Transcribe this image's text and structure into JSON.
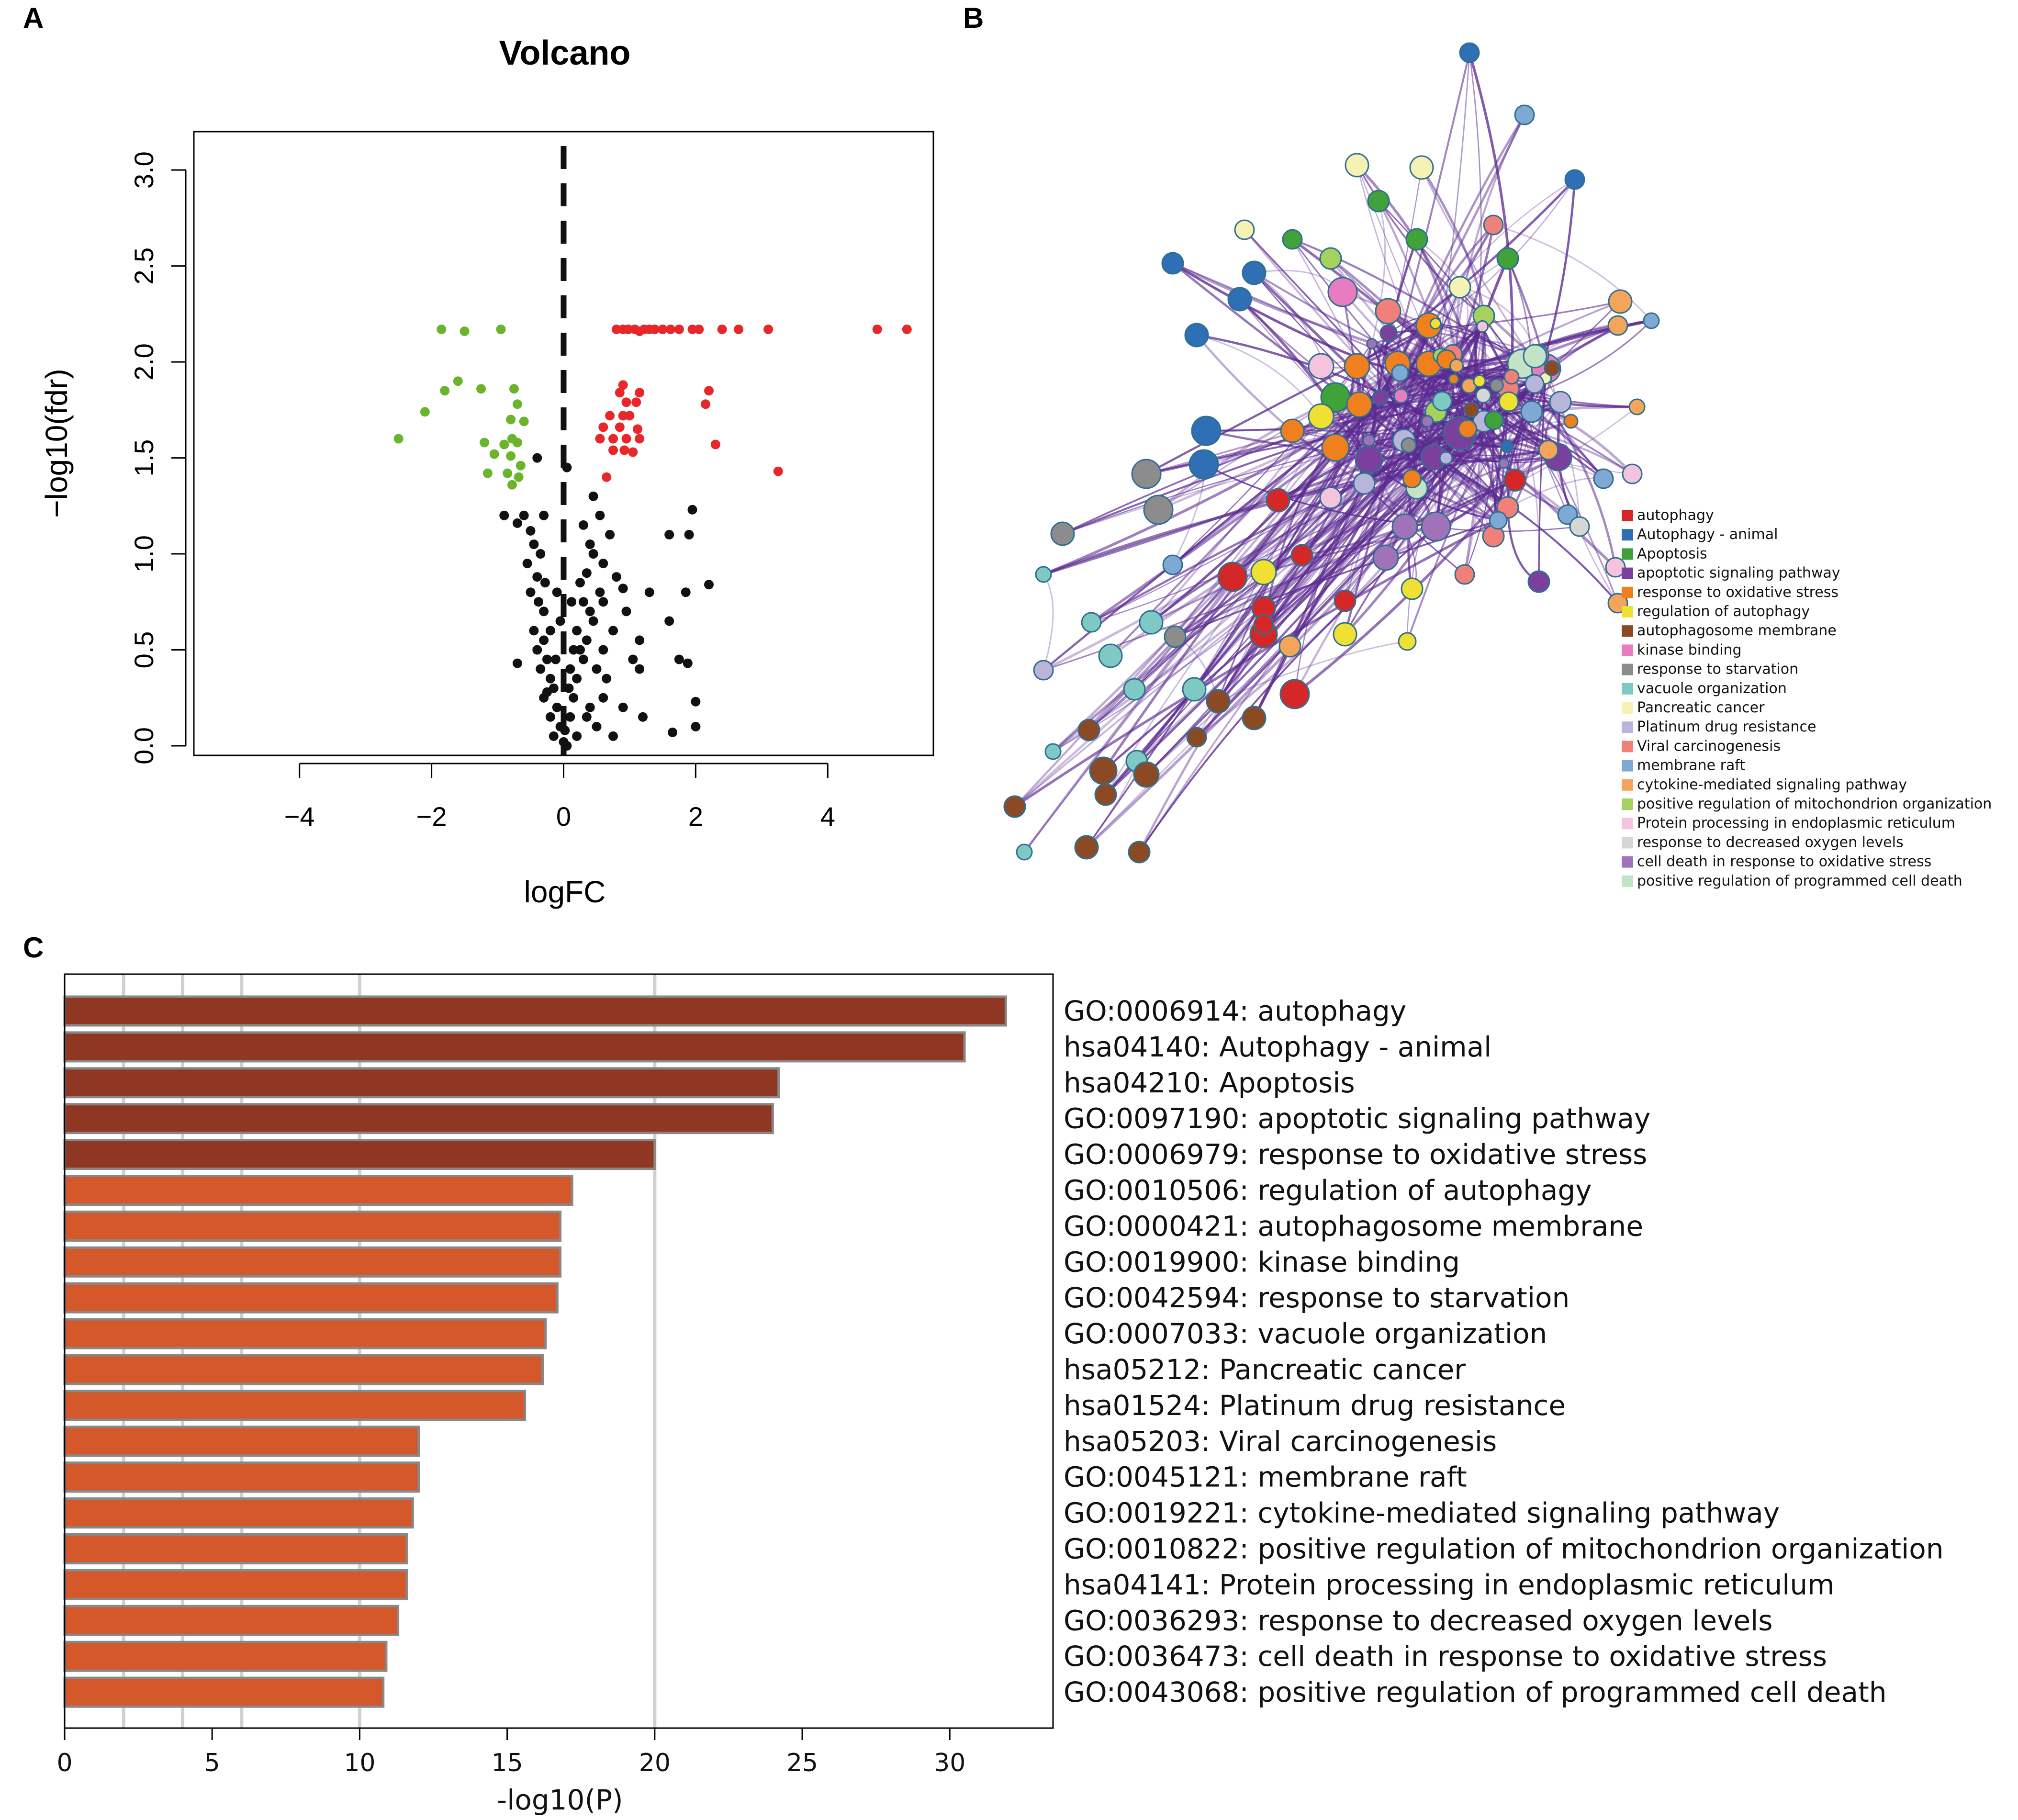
{
  "panel_labels": {
    "a": "A",
    "b": "B",
    "c": "C"
  },
  "chart_data": [
    {
      "type": "scatter",
      "panel": "A",
      "title": "Volcano",
      "xlabel": "logFC",
      "ylabel": "−log10(fdr)",
      "xlim": [
        -5.6,
        5.6
      ],
      "ylim": [
        -0.05,
        3.2
      ],
      "xticks": [
        -4,
        -2,
        0,
        2,
        4
      ],
      "xtick_labels": [
        "−4",
        "−2",
        "0",
        "2",
        "4"
      ],
      "yticks": [
        0.0,
        0.5,
        1.0,
        1.5,
        2.0,
        2.5,
        3.0
      ],
      "ytick_labels": [
        "0.0",
        "0.5",
        "1.0",
        "1.5",
        "2.0",
        "2.5",
        "3.0"
      ],
      "colors": {
        "up": "#e8272a",
        "down": "#6bb52d",
        "ns": "#111111",
        "threshold": "#111111"
      },
      "threshold_line": {
        "x": 0,
        "style": "dashed"
      },
      "series": [
        {
          "name": "down",
          "color": "#6bb52d",
          "points": [
            [
              -1.85,
              2.17
            ],
            [
              -1.5,
              2.16
            ],
            [
              -0.95,
              2.17
            ],
            [
              -1.6,
              1.9
            ],
            [
              -1.8,
              1.85
            ],
            [
              -1.25,
              1.86
            ],
            [
              -0.75,
              1.86
            ],
            [
              -2.1,
              1.74
            ],
            [
              -0.7,
              1.78
            ],
            [
              -0.8,
              1.7
            ],
            [
              -0.6,
              1.69
            ],
            [
              -2.5,
              1.6
            ],
            [
              -1.2,
              1.58
            ],
            [
              -0.9,
              1.57
            ],
            [
              -0.78,
              1.6
            ],
            [
              -0.7,
              1.58
            ],
            [
              -1.05,
              1.52
            ],
            [
              -0.8,
              1.51
            ],
            [
              -0.65,
              1.46
            ],
            [
              -1.15,
              1.42
            ],
            [
              -0.85,
              1.42
            ],
            [
              -0.78,
              1.36
            ],
            [
              -0.68,
              1.4
            ]
          ]
        },
        {
          "name": "up",
          "color": "#e8272a",
          "points": [
            [
              0.8,
              2.17
            ],
            [
              0.9,
              2.17
            ],
            [
              0.98,
              2.17
            ],
            [
              1.08,
              2.17
            ],
            [
              1.15,
              2.16
            ],
            [
              1.22,
              2.17
            ],
            [
              1.3,
              2.17
            ],
            [
              1.38,
              2.17
            ],
            [
              1.5,
              2.17
            ],
            [
              1.62,
              2.17
            ],
            [
              1.75,
              2.17
            ],
            [
              1.95,
              2.17
            ],
            [
              2.05,
              2.17
            ],
            [
              2.4,
              2.17
            ],
            [
              2.65,
              2.17
            ],
            [
              3.1,
              2.17
            ],
            [
              4.75,
              2.17
            ],
            [
              5.2,
              2.17
            ],
            [
              0.9,
              1.88
            ],
            [
              0.85,
              1.84
            ],
            [
              1.15,
              1.84
            ],
            [
              2.2,
              1.85
            ],
            [
              0.95,
              1.79
            ],
            [
              1.1,
              1.79
            ],
            [
              2.15,
              1.78
            ],
            [
              0.7,
              1.72
            ],
            [
              0.9,
              1.72
            ],
            [
              1.0,
              1.72
            ],
            [
              0.6,
              1.66
            ],
            [
              0.85,
              1.66
            ],
            [
              1.12,
              1.65
            ],
            [
              0.55,
              1.6
            ],
            [
              0.75,
              1.6
            ],
            [
              0.95,
              1.6
            ],
            [
              1.15,
              1.6
            ],
            [
              2.3,
              1.57
            ],
            [
              0.75,
              1.54
            ],
            [
              0.92,
              1.54
            ],
            [
              1.05,
              1.53
            ],
            [
              0.65,
              1.4
            ],
            [
              3.25,
              1.43
            ]
          ]
        },
        {
          "name": "ns",
          "color": "#111111",
          "points": [
            [
              -0.4,
              1.5
            ],
            [
              -0.9,
              1.2
            ],
            [
              -0.6,
              1.2
            ],
            [
              -0.7,
              1.16
            ],
            [
              -0.5,
              1.12
            ],
            [
              -0.3,
              1.2
            ],
            [
              -0.45,
              1.05
            ],
            [
              -0.35,
              1.0
            ],
            [
              -0.55,
              0.95
            ],
            [
              -0.4,
              0.88
            ],
            [
              -0.28,
              0.85
            ],
            [
              -0.5,
              0.8
            ],
            [
              -0.38,
              0.75
            ],
            [
              -0.3,
              0.7
            ],
            [
              -0.45,
              0.6
            ],
            [
              -0.3,
              0.55
            ],
            [
              -0.4,
              0.5
            ],
            [
              -0.25,
              0.45
            ],
            [
              -0.7,
              0.43
            ],
            [
              -0.35,
              0.4
            ],
            [
              -0.2,
              0.35
            ],
            [
              -0.15,
              0.3
            ],
            [
              -0.3,
              0.25
            ],
            [
              -0.1,
              0.2
            ],
            [
              -0.2,
              0.15
            ],
            [
              -0.05,
              0.1
            ],
            [
              -0.15,
              0.05
            ],
            [
              0.0,
              0.02
            ],
            [
              0.05,
              0.0
            ],
            [
              0.02,
              0.08
            ],
            [
              0.1,
              0.15
            ],
            [
              0.15,
              0.25
            ],
            [
              0.08,
              0.3
            ],
            [
              0.2,
              0.35
            ],
            [
              0.1,
              0.4
            ],
            [
              0.3,
              0.45
            ],
            [
              0.25,
              0.5
            ],
            [
              0.35,
              0.55
            ],
            [
              0.2,
              0.6
            ],
            [
              0.45,
              0.65
            ],
            [
              0.4,
              0.7
            ],
            [
              0.3,
              0.75
            ],
            [
              0.55,
              0.8
            ],
            [
              0.35,
              0.9
            ],
            [
              0.45,
              1.0
            ],
            [
              0.6,
              0.95
            ],
            [
              0.4,
              1.05
            ],
            [
              0.3,
              1.15
            ],
            [
              0.55,
              1.2
            ],
            [
              0.45,
              1.3
            ],
            [
              0.7,
              1.1
            ],
            [
              0.8,
              0.88
            ],
            [
              0.9,
              0.82
            ],
            [
              0.6,
              0.75
            ],
            [
              0.95,
              0.7
            ],
            [
              0.75,
              0.6
            ],
            [
              1.15,
              0.55
            ],
            [
              1.05,
              0.45
            ],
            [
              0.65,
              0.35
            ],
            [
              0.9,
              0.2
            ],
            [
              1.2,
              0.15
            ],
            [
              0.5,
              0.1
            ],
            [
              0.75,
              0.05
            ],
            [
              0.2,
              0.05
            ],
            [
              0.35,
              0.15
            ],
            [
              0.6,
              0.5
            ],
            [
              1.3,
              0.8
            ],
            [
              1.6,
              0.65
            ],
            [
              1.85,
              0.8
            ],
            [
              2.2,
              0.84
            ],
            [
              1.75,
              0.45
            ],
            [
              1.9,
              1.1
            ],
            [
              1.95,
              1.23
            ],
            [
              1.6,
              1.1
            ],
            [
              1.88,
              0.43
            ],
            [
              2.0,
              0.23
            ],
            [
              2.0,
              0.1
            ],
            [
              1.65,
              0.07
            ],
            [
              1.15,
              0.4
            ],
            [
              0.05,
              1.45
            ],
            [
              0.15,
              0.5
            ],
            [
              -0.05,
              0.65
            ],
            [
              -0.2,
              0.6
            ],
            [
              0.12,
              0.75
            ],
            [
              -0.1,
              0.8
            ],
            [
              0.25,
              0.85
            ],
            [
              0.5,
              0.4
            ],
            [
              -0.25,
              0.28
            ],
            [
              0.4,
              0.2
            ],
            [
              -0.12,
              0.45
            ],
            [
              0.6,
              0.25
            ]
          ]
        }
      ]
    },
    {
      "type": "bar",
      "panel": "C",
      "orientation": "horizontal",
      "xlabel": "-log10(P)",
      "xlim": [
        0,
        33.5
      ],
      "xticks": [
        0,
        5,
        10,
        15,
        20,
        25,
        30
      ],
      "xtick_labels": [
        "0",
        "5",
        "10",
        "15",
        "20",
        "25",
        "30"
      ],
      "gridlines": [
        2,
        4,
        6,
        10,
        20
      ],
      "colors": {
        "top": "#8f3723",
        "rest": "#d4582a",
        "edge": "#888888",
        "grid": "#d0d0d0"
      },
      "categories": [
        "GO:0006914: autophagy",
        "hsa04140: Autophagy - animal",
        "hsa04210: Apoptosis",
        "GO:0097190: apoptotic signaling pathway",
        "GO:0006979: response to oxidative stress",
        "GO:0010506: regulation of autophagy",
        "GO:0000421: autophagosome membrane",
        "GO:0019900: kinase binding",
        "GO:0042594: response to starvation",
        "GO:0007033: vacuole organization",
        "hsa05212: Pancreatic cancer",
        "hsa01524: Platinum drug resistance",
        "hsa05203: Viral carcinogenesis",
        "GO:0045121: membrane raft",
        "GO:0019221: cytokine-mediated signaling pathway",
        "GO:0010822: positive regulation of mitochondrion organization",
        "hsa04141: Protein processing in endoplasmic reticulum",
        "GO:0036293: response to decreased oxygen levels",
        "GO:0036473: cell death in response to oxidative stress",
        "GO:0043068: positive regulation of programmed cell death"
      ],
      "values": [
        31.9,
        30.5,
        24.2,
        24.0,
        20.0,
        17.2,
        16.8,
        16.8,
        16.7,
        16.3,
        16.2,
        15.6,
        12.0,
        12.0,
        11.8,
        11.6,
        11.6,
        11.3,
        10.9,
        10.8
      ],
      "dark_count": 5
    }
  ],
  "network": {
    "panel": "B",
    "edge_color": "#5b2a91",
    "legend": [
      {
        "label": "autophagy",
        "color": "#d62728"
      },
      {
        "label": "Autophagy - animal",
        "color": "#2e6fb5"
      },
      {
        "label": "Apoptosis",
        "color": "#3fa33a"
      },
      {
        "label": "apoptotic signaling pathway",
        "color": "#7b3f9e"
      },
      {
        "label": "response to oxidative stress",
        "color": "#f07f1e"
      },
      {
        "label": "regulation of autophagy",
        "color": "#f0e032"
      },
      {
        "label": "autophagosome membrane",
        "color": "#8b4a23"
      },
      {
        "label": "kinase binding",
        "color": "#e87cc0"
      },
      {
        "label": "response to starvation",
        "color": "#8c8c8c"
      },
      {
        "label": "vacuole organization",
        "color": "#7fc9c4"
      },
      {
        "label": "Pancreatic cancer",
        "color": "#f5f2b4"
      },
      {
        "label": "Platinum drug resistance",
        "color": "#b9b5da"
      },
      {
        "label": "Viral carcinogenesis",
        "color": "#f2807a"
      },
      {
        "label": "membrane raft",
        "color": "#7fa9d4"
      },
      {
        "label": "cytokine-mediated signaling pathway",
        "color": "#f5a55a"
      },
      {
        "label": "positive regulation of mitochondrion organization",
        "color": "#a5d25f"
      },
      {
        "label": "Protein processing in endoplasmic reticulum",
        "color": "#f5c3dd"
      },
      {
        "label": "response to decreased oxygen levels",
        "color": "#d6d6d6"
      },
      {
        "label": "cell death in response to oxidative stress",
        "color": "#a072b8"
      },
      {
        "label": "positive regulation of programmed cell death",
        "color": "#c3e3c6"
      }
    ]
  }
}
